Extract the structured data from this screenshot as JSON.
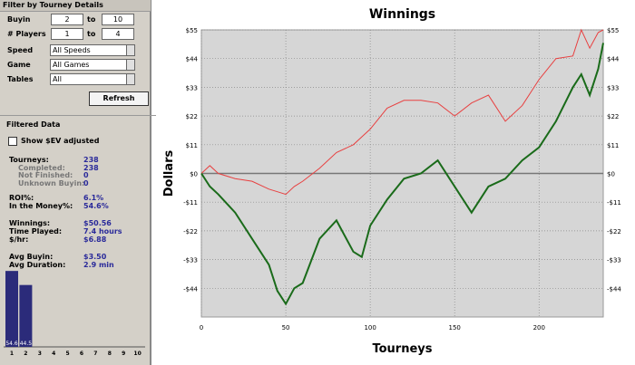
{
  "sidebar": {
    "filter_title": "Filter by Tourney Details",
    "filters": [
      {
        "label": "Buyin",
        "from": "2",
        "to_label": "to",
        "to": "10"
      },
      {
        "label": "# Players",
        "from": "1",
        "to_label": "to",
        "to": "4"
      }
    ],
    "selects": [
      {
        "label": "Speed",
        "value": "All Speeds"
      },
      {
        "label": "Game",
        "value": "All Games"
      },
      {
        "label": "Tables",
        "value": "All"
      }
    ],
    "button": "Refresh",
    "data_title": "Filtered Data",
    "checkbox": "Show $EV adjusted",
    "stats": [
      [
        [
          "Tourneys:",
          "238"
        ],
        [
          "Completed:",
          "238"
        ],
        [
          "Not Finished:",
          "0"
        ],
        [
          "Unknown Buyin:",
          "0"
        ]
      ],
      [
        [
          "ROI%:",
          "6.1%"
        ],
        [
          "In the Money%:",
          "54.6%"
        ]
      ],
      [
        [
          "Winnings:",
          "$50.56"
        ],
        [
          "Time Played:",
          "7.4 hours"
        ],
        [
          "$/hr:",
          "$6.88"
        ]
      ],
      [
        [
          "Avg Buyin:",
          "$3.50"
        ],
        [
          "Avg Duration:",
          "2.9 min"
        ]
      ]
    ]
  },
  "chart_data": [
    {
      "type": "line",
      "title": "Winnings",
      "x_label": "Tourneys",
      "y_label": "Dollars",
      "x": [
        0,
        5,
        10,
        20,
        30,
        40,
        45,
        50,
        55,
        60,
        70,
        80,
        90,
        95,
        100,
        110,
        120,
        130,
        140,
        150,
        160,
        170,
        180,
        190,
        200,
        210,
        220,
        225,
        230,
        235,
        238
      ],
      "series": [
        {
          "color": "#e84040",
          "values": [
            0,
            3,
            0,
            -2,
            -3,
            -6,
            -7,
            -8,
            -5,
            -3,
            2,
            8,
            11,
            14,
            17,
            25,
            28,
            28,
            27,
            22,
            27,
            30,
            20,
            26,
            36,
            44,
            45,
            55,
            48,
            54,
            55
          ]
        },
        {
          "color": "#1a6b1a",
          "values": [
            0,
            -5,
            -8,
            -15,
            -25,
            -35,
            -45,
            -50,
            -44,
            -42,
            -25,
            -18,
            -30,
            -32,
            -20,
            -10,
            -2,
            0,
            5,
            -5,
            -15,
            -5,
            -2,
            5,
            10,
            20,
            33,
            38,
            30,
            40,
            50
          ]
        }
      ],
      "xlim": [
        0,
        238
      ],
      "xticks": [
        0,
        50,
        100,
        150,
        200
      ],
      "ylim": [
        -55,
        55
      ],
      "yticks": [
        {
          "value": -44,
          "label": "-$44"
        },
        {
          "value": -33,
          "label": "-$33"
        },
        {
          "value": -22,
          "label": "-$22"
        },
        {
          "value": -11,
          "label": "-$11"
        },
        {
          "value": 0,
          "label": "$0"
        },
        {
          "value": 11,
          "label": "$11"
        },
        {
          "value": 22,
          "label": "$22"
        },
        {
          "value": 33,
          "label": "$33"
        },
        {
          "value": 44,
          "label": "$44"
        },
        {
          "value": 55,
          "label": "$55"
        }
      ],
      "grid": true
    },
    {
      "type": "bar",
      "categories": [
        "1",
        "2",
        "3",
        "4",
        "5",
        "6",
        "7",
        "8",
        "9",
        "10"
      ],
      "values": [
        54.6,
        44.5,
        null,
        null,
        null,
        null,
        null,
        null,
        null,
        null
      ],
      "value_labels": [
        "54.6",
        "44.5",
        null,
        null,
        null,
        null,
        null,
        null,
        null,
        null
      ],
      "color": "#2b2b7a",
      "ylim": [
        0,
        56
      ]
    }
  ]
}
